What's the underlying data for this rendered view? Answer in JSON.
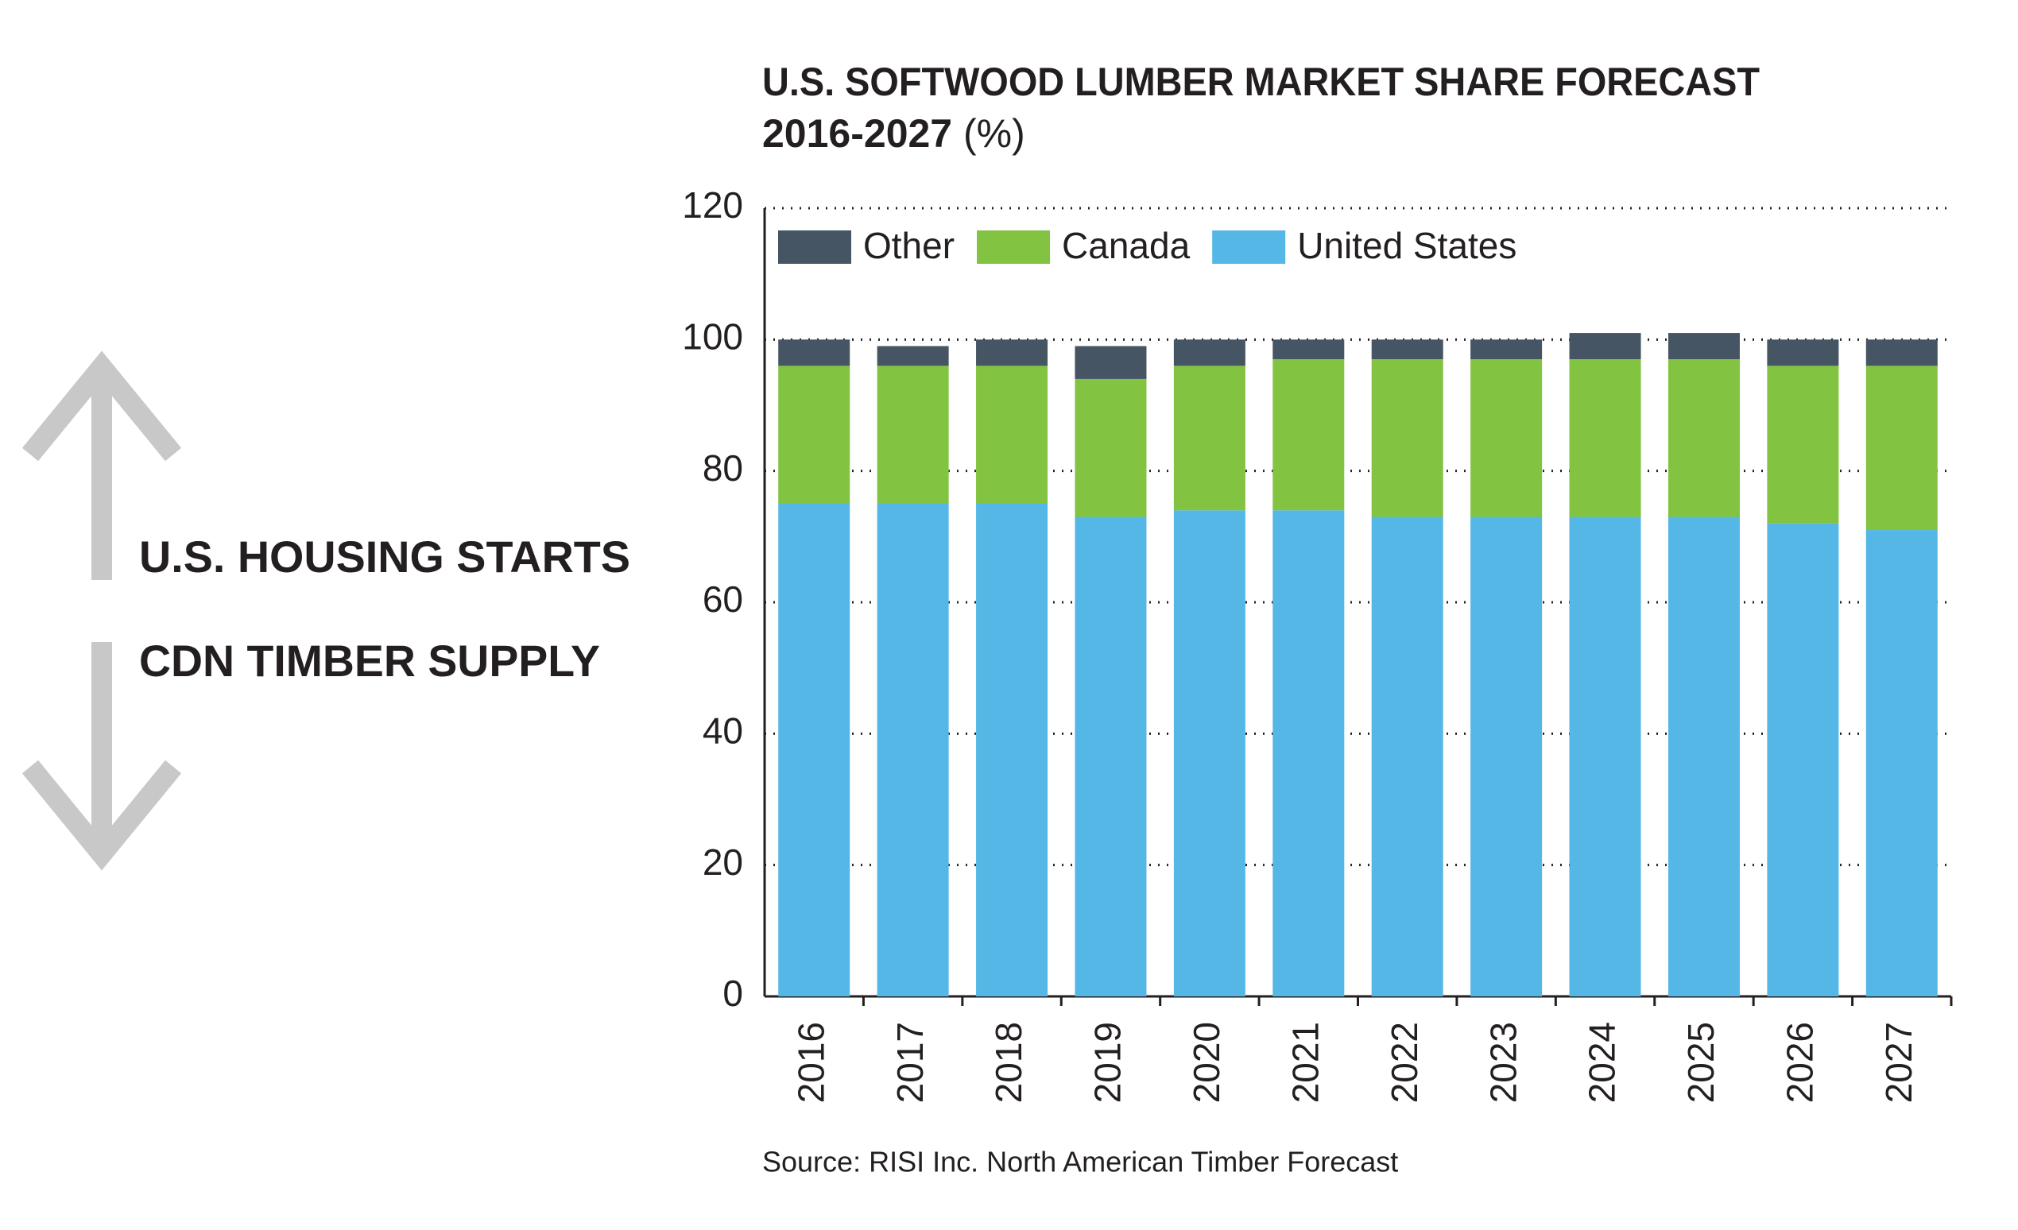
{
  "chart_data": {
    "type": "stacked-bar",
    "title": [
      "U.S. SOFTWOOD LUMBER MARKET SHARE FORECAST",
      "2016-2027"
    ],
    "unit": "(%)",
    "categories": [
      "2016",
      "2017",
      "2018",
      "2019",
      "2020",
      "2021",
      "2022",
      "2023",
      "2024",
      "2025",
      "2026",
      "2027"
    ],
    "series": [
      {
        "name": "United States",
        "color": "#55b7e6",
        "values": [
          75,
          75,
          75,
          73,
          74,
          74,
          73,
          73,
          73,
          73,
          72,
          71
        ]
      },
      {
        "name": "Canada",
        "color": "#82c341",
        "values": [
          21,
          21,
          21,
          21,
          22,
          23,
          24,
          24,
          24,
          24,
          24,
          25
        ]
      },
      {
        "name": "Other",
        "color": "#465563",
        "values": [
          4,
          3,
          4,
          5,
          4,
          3,
          3,
          3,
          4,
          4,
          4,
          4
        ]
      }
    ],
    "ylim": [
      0,
      120
    ],
    "yticks": [
      0,
      20,
      40,
      60,
      80,
      100,
      120
    ],
    "grid": true,
    "legend": "top-left",
    "source": "Source: RISI Inc. North American Timber Forecast"
  },
  "side_labels": [
    "U.S. HOUSING STARTS",
    "CDN TIMBER SUPPLY"
  ]
}
